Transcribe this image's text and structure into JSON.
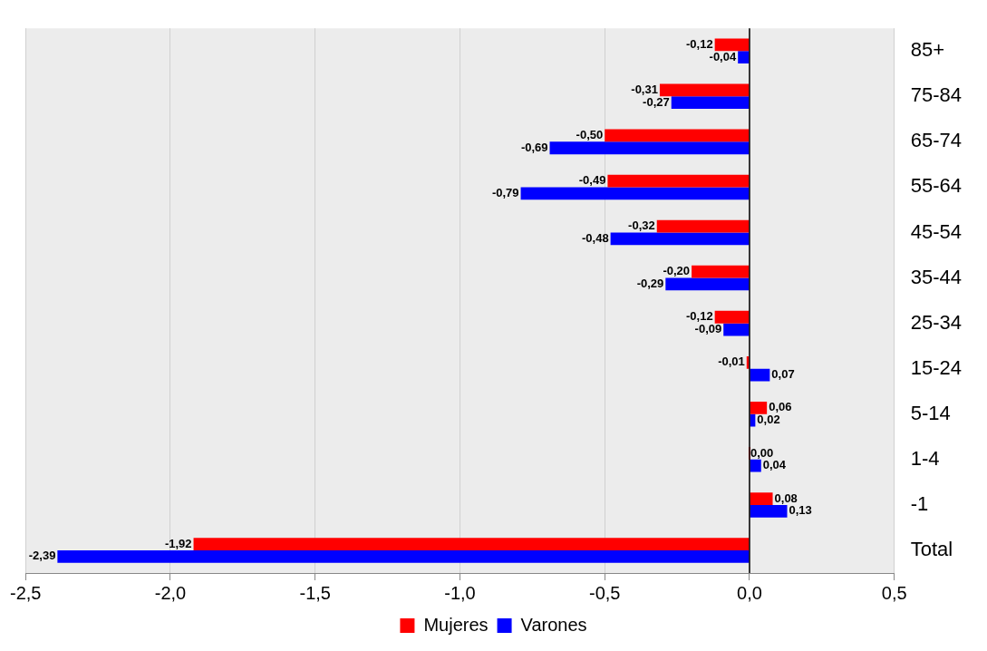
{
  "chart_data": {
    "type": "bar",
    "orientation": "horizontal",
    "categories": [
      "85+",
      "75-84",
      "65-74",
      "55-64",
      "45-54",
      "35-44",
      "25-34",
      "15-24",
      "5-14",
      "1-4",
      "-1",
      "Total"
    ],
    "series": [
      {
        "name": "Mujeres",
        "color": "#ff0000",
        "values": [
          -0.12,
          -0.31,
          -0.5,
          -0.49,
          -0.32,
          -0.2,
          -0.12,
          -0.01,
          0.06,
          0,
          0.08,
          -1.92
        ],
        "value_labels": [
          "-0,12",
          "-0,31",
          "-0,50",
          "-0,49",
          "-0,32",
          "-0,20",
          "-0,12",
          "-0,01",
          "0,06",
          "0,00",
          "0,08",
          "-1,92"
        ]
      },
      {
        "name": "Varones",
        "color": "#0000ff",
        "values": [
          -0.04,
          -0.27,
          -0.69,
          -0.79,
          -0.48,
          -0.29,
          -0.09,
          0.07,
          0.02,
          0.04,
          0.13,
          -2.39
        ],
        "value_labels": [
          "-0,04",
          "-0,27",
          "-0,69",
          "-0,79",
          "-0,48",
          "-0,29",
          "-0,09",
          "0,07",
          "0,02",
          "0,04",
          "0,13",
          "-2,39"
        ]
      }
    ],
    "xlim": [
      -2.5,
      0.5
    ],
    "xticks": [
      {
        "value": -2.5,
        "label": "-2,5"
      },
      {
        "value": -2,
        "label": "-2,0"
      },
      {
        "value": -1.5,
        "label": "-1,5"
      },
      {
        "value": -1,
        "label": "-1,0"
      },
      {
        "value": -0.5,
        "label": "-0,5"
      },
      {
        "value": 0,
        "label": "0,0"
      },
      {
        "value": 0.5,
        "label": "0,5"
      }
    ],
    "ref_lines": [
      {
        "axis": "x",
        "value": 0,
        "color": "#000000"
      }
    ],
    "grid": "x",
    "legend": "bottom"
  }
}
